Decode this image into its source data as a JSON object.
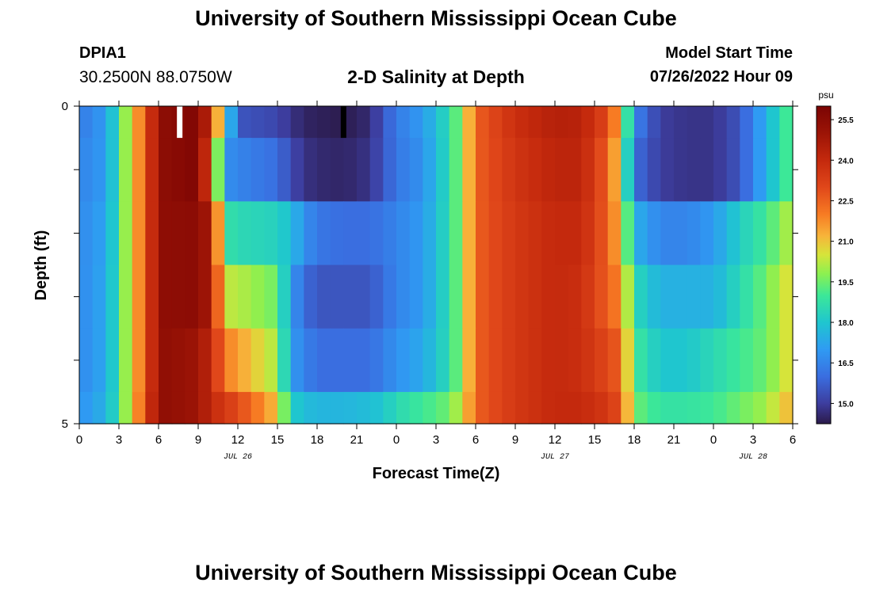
{
  "header": {
    "title": "University of Southern Mississippi Ocean Cube",
    "station_id": "DPIA1",
    "coords": "30.2500N  88.0750W",
    "subtitle": "2-D Salinity at Depth",
    "start_label": "Model Start Time",
    "start_value": "07/26/2022 Hour 09"
  },
  "footer": {
    "title": "University of Southern Mississippi Ocean Cube"
  },
  "chart_data": {
    "type": "heatmap",
    "title": "2-D Salinity at Depth",
    "xlabel": "Forecast Time(Z)",
    "ylabel": "Depth (ft)",
    "x_range_hours": [
      0,
      54
    ],
    "y_range_ft": [
      0,
      5
    ],
    "x_ticks": [
      "0",
      "3",
      "6",
      "9",
      "12",
      "15",
      "18",
      "21",
      "0",
      "3",
      "6",
      "9",
      "12",
      "15",
      "18",
      "21",
      "0",
      "3",
      "6"
    ],
    "y_ticks": [
      "0",
      "5"
    ],
    "date_labels": [
      {
        "label": "JUL 26",
        "hour": 12
      },
      {
        "label": "JUL 27",
        "hour": 36
      },
      {
        "label": "JUL 28",
        "hour": 51
      }
    ],
    "colorbar": {
      "unit": "psu",
      "min": 14.25,
      "max": 26.0,
      "ticks": [
        "25.5",
        "24.0",
        "22.5",
        "21.0",
        "19.5",
        "18.0",
        "16.5",
        "15.0"
      ],
      "stops": [
        {
          "v": 14.25,
          "c": "#2b1a4a"
        },
        {
          "v": 15.0,
          "c": "#3d3d9e"
        },
        {
          "v": 16.0,
          "c": "#3a6ee0"
        },
        {
          "v": 17.0,
          "c": "#2f9bf3"
        },
        {
          "v": 18.0,
          "c": "#1fc6cf"
        },
        {
          "v": 19.0,
          "c": "#3ce898"
        },
        {
          "v": 19.8,
          "c": "#8cf050"
        },
        {
          "v": 20.5,
          "c": "#d6e43a"
        },
        {
          "v": 21.2,
          "c": "#f7b43a"
        },
        {
          "v": 22.0,
          "c": "#f77b23"
        },
        {
          "v": 23.0,
          "c": "#e0471a"
        },
        {
          "v": 24.0,
          "c": "#c4290d"
        },
        {
          "v": 25.0,
          "c": "#9c1406"
        },
        {
          "v": 26.0,
          "c": "#7a0403"
        }
      ]
    },
    "depth_layers": [
      0,
      0.5,
      1.5,
      2.5,
      3.5,
      4.5,
      5
    ],
    "time_keys_hours": [
      0,
      2,
      3,
      4,
      5,
      6,
      9,
      10,
      11,
      12,
      15,
      16,
      17,
      18,
      20,
      22,
      23,
      24,
      26,
      28,
      29,
      30,
      33,
      36,
      38,
      40,
      41,
      42,
      44,
      46,
      48,
      50,
      52,
      53.5,
      54
    ],
    "layer_values": [
      [
        16.3,
        17.0,
        18.8,
        21.0,
        22.5,
        25.4,
        25.8,
        23.5,
        19.0,
        15.5,
        15.2,
        14.8,
        14.5,
        14.4,
        14.3,
        14.6,
        15.5,
        16.3,
        17.0,
        18.6,
        20.0,
        22.5,
        23.8,
        24.4,
        24.3,
        23.0,
        21.0,
        16.5,
        15.0,
        14.8,
        14.8,
        15.5,
        17.5,
        19.0,
        20.0
      ],
      [
        16.5,
        17.0,
        18.8,
        21.0,
        22.5,
        25.4,
        25.8,
        22.5,
        16.8,
        16.5,
        16.0,
        15.3,
        14.8,
        14.6,
        14.5,
        14.8,
        15.5,
        16.2,
        16.8,
        18.6,
        20.0,
        22.5,
        23.6,
        24.2,
        24.2,
        22.5,
        20.5,
        16.0,
        15.0,
        14.8,
        14.8,
        15.5,
        17.5,
        19.0,
        20.0
      ],
      [
        16.6,
        17.2,
        18.8,
        21.0,
        22.5,
        25.4,
        25.5,
        24.5,
        18.8,
        18.5,
        18.3,
        17.8,
        16.8,
        16.2,
        16.0,
        16.0,
        16.2,
        16.5,
        17.0,
        18.6,
        20.0,
        22.5,
        23.5,
        24.0,
        24.0,
        22.5,
        21.0,
        17.5,
        16.5,
        16.5,
        17.0,
        18.2,
        19.0,
        20.0,
        22.0
      ],
      [
        16.6,
        17.3,
        18.8,
        21.0,
        22.5,
        25.4,
        25.5,
        24.5,
        20.3,
        20.2,
        19.5,
        17.0,
        16.0,
        15.5,
        15.5,
        15.5,
        16.0,
        16.5,
        17.0,
        18.6,
        20.0,
        22.5,
        23.5,
        24.0,
        23.8,
        22.5,
        21.8,
        18.5,
        17.5,
        17.5,
        17.5,
        18.5,
        19.5,
        20.5,
        23.0
      ],
      [
        16.6,
        17.3,
        18.8,
        21.0,
        22.5,
        25.4,
        25.0,
        24.0,
        22.0,
        21.5,
        20.0,
        17.0,
        16.5,
        16.0,
        16.0,
        16.0,
        16.4,
        16.8,
        17.3,
        18.6,
        20.0,
        22.5,
        23.5,
        24.0,
        23.8,
        23.0,
        22.5,
        19.0,
        18.0,
        18.0,
        18.5,
        19.0,
        19.5,
        20.5,
        23.0
      ],
      [
        16.8,
        17.5,
        18.8,
        21.0,
        22.8,
        25.4,
        25.0,
        24.0,
        23.5,
        23.0,
        21.0,
        18.2,
        17.8,
        17.6,
        17.6,
        17.8,
        18.0,
        18.5,
        19.0,
        19.5,
        20.5,
        22.5,
        23.5,
        24.0,
        24.0,
        23.5,
        22.8,
        19.5,
        18.8,
        18.8,
        19.0,
        19.5,
        20.0,
        21.0,
        23.0
      ]
    ],
    "markers": [
      {
        "hour": 7.6,
        "depth_from": 0,
        "depth_to": 0.5,
        "color": "#ffffff"
      },
      {
        "hour": 20.0,
        "depth_from": 0,
        "depth_to": 0.5,
        "color": "#000000"
      }
    ]
  }
}
